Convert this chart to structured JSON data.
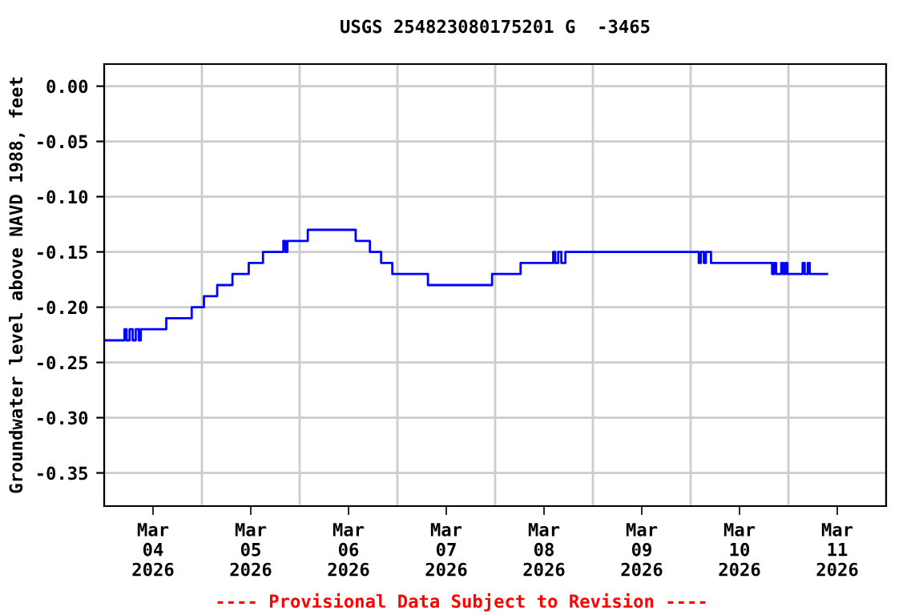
{
  "chart_data": {
    "type": "step",
    "title": "USGS 254823080175201 G  -3465",
    "ylabel": "Groundwater level above NAVD 1988, feet",
    "annotations": [
      "---- Provisional Data Subject to Revision ----"
    ],
    "x": [
      "2026-03-04T00:00",
      "2026-03-04T05:00",
      "2026-03-04T05:30",
      "2026-03-04T06:15",
      "2026-03-04T07:00",
      "2026-03-04T07:45",
      "2026-03-04T08:30",
      "2026-03-04T09:00",
      "2026-03-04T15:15",
      "2026-03-04T21:30",
      "2026-03-05T00:30",
      "2026-03-05T03:45",
      "2026-03-05T07:30",
      "2026-03-05T11:30",
      "2026-03-05T15:00",
      "2026-03-05T20:00",
      "2026-03-05T20:30",
      "2026-03-05T21:00",
      "2026-03-06T02:00",
      "2026-03-06T13:45",
      "2026-03-06T17:15",
      "2026-03-06T20:00",
      "2026-03-06T22:45",
      "2026-03-07T07:30",
      "2026-03-07T23:15",
      "2026-03-08T02:30",
      "2026-03-08T03:00",
      "2026-03-08T06:15",
      "2026-03-08T14:15",
      "2026-03-08T14:45",
      "2026-03-08T15:30",
      "2026-03-08T16:15",
      "2026-03-08T17:15",
      "2026-03-10T02:00",
      "2026-03-10T02:30",
      "2026-03-10T03:15",
      "2026-03-10T03:45",
      "2026-03-10T05:00",
      "2026-03-10T20:00",
      "2026-03-10T20:30",
      "2026-03-10T21:00",
      "2026-03-10T22:15",
      "2026-03-10T22:45",
      "2026-03-10T23:15",
      "2026-03-10T23:45",
      "2026-03-11T03:30",
      "2026-03-11T04:00",
      "2026-03-11T04:45",
      "2026-03-11T05:15",
      "2026-03-11T09:30"
    ],
    "series": [
      {
        "color": "#0000ff",
        "values": [
          -0.23,
          -0.22,
          -0.23,
          -0.22,
          -0.23,
          -0.22,
          -0.23,
          -0.22,
          -0.21,
          -0.2,
          -0.19,
          -0.18,
          -0.17,
          -0.16,
          -0.15,
          -0.14,
          -0.15,
          -0.14,
          -0.13,
          -0.14,
          -0.15,
          -0.16,
          -0.17,
          -0.18,
          -0.17,
          null,
          -0.17,
          -0.16,
          -0.15,
          -0.16,
          -0.15,
          -0.16,
          -0.15,
          -0.16,
          -0.15,
          -0.16,
          -0.15,
          -0.16,
          -0.17,
          -0.16,
          -0.17,
          -0.16,
          -0.17,
          -0.16,
          -0.17,
          -0.16,
          -0.17,
          -0.16,
          -0.17,
          -0.17
        ]
      }
    ],
    "xlim": [
      "2026-03-04T00:00",
      "2026-03-12T00:00"
    ],
    "xticks": [
      {
        "value": "2026-03-04T00:00",
        "label": null
      },
      {
        "value": "2026-03-04T12:00",
        "label": "Mar\n04\n2026"
      },
      {
        "value": "2026-03-05T00:00",
        "label": null
      },
      {
        "value": "2026-03-05T12:00",
        "label": "Mar\n05\n2026"
      },
      {
        "value": "2026-03-06T00:00",
        "label": null
      },
      {
        "value": "2026-03-06T12:00",
        "label": "Mar\n06\n2026"
      },
      {
        "value": "2026-03-07T00:00",
        "label": null
      },
      {
        "value": "2026-03-07T12:00",
        "label": "Mar\n07\n2026"
      },
      {
        "value": "2026-03-08T00:00",
        "label": null
      },
      {
        "value": "2026-03-08T12:00",
        "label": "Mar\n08\n2026"
      },
      {
        "value": "2026-03-09T00:00",
        "label": null
      },
      {
        "value": "2026-03-09T12:00",
        "label": "Mar\n09\n2026"
      },
      {
        "value": "2026-03-10T00:00",
        "label": null
      },
      {
        "value": "2026-03-10T12:00",
        "label": "Mar\n10\n2026"
      },
      {
        "value": "2026-03-11T00:00",
        "label": null
      },
      {
        "value": "2026-03-11T12:00",
        "label": "Mar\n11\n2026"
      },
      {
        "value": "2026-03-12T00:00",
        "label": null
      }
    ],
    "ylim": [
      -0.38,
      0.02
    ],
    "yticks": [
      {
        "value": -0.35,
        "label": "-0.35"
      },
      {
        "value": -0.3,
        "label": "-0.30"
      },
      {
        "value": -0.25,
        "label": "-0.25"
      },
      {
        "value": -0.2,
        "label": "-0.20"
      },
      {
        "value": -0.15,
        "label": "-0.15"
      },
      {
        "value": -0.1,
        "label": "-0.10"
      },
      {
        "value": -0.05,
        "label": "-0.05"
      },
      {
        "value": 0,
        "label": "0.00"
      }
    ],
    "grid": true
  }
}
